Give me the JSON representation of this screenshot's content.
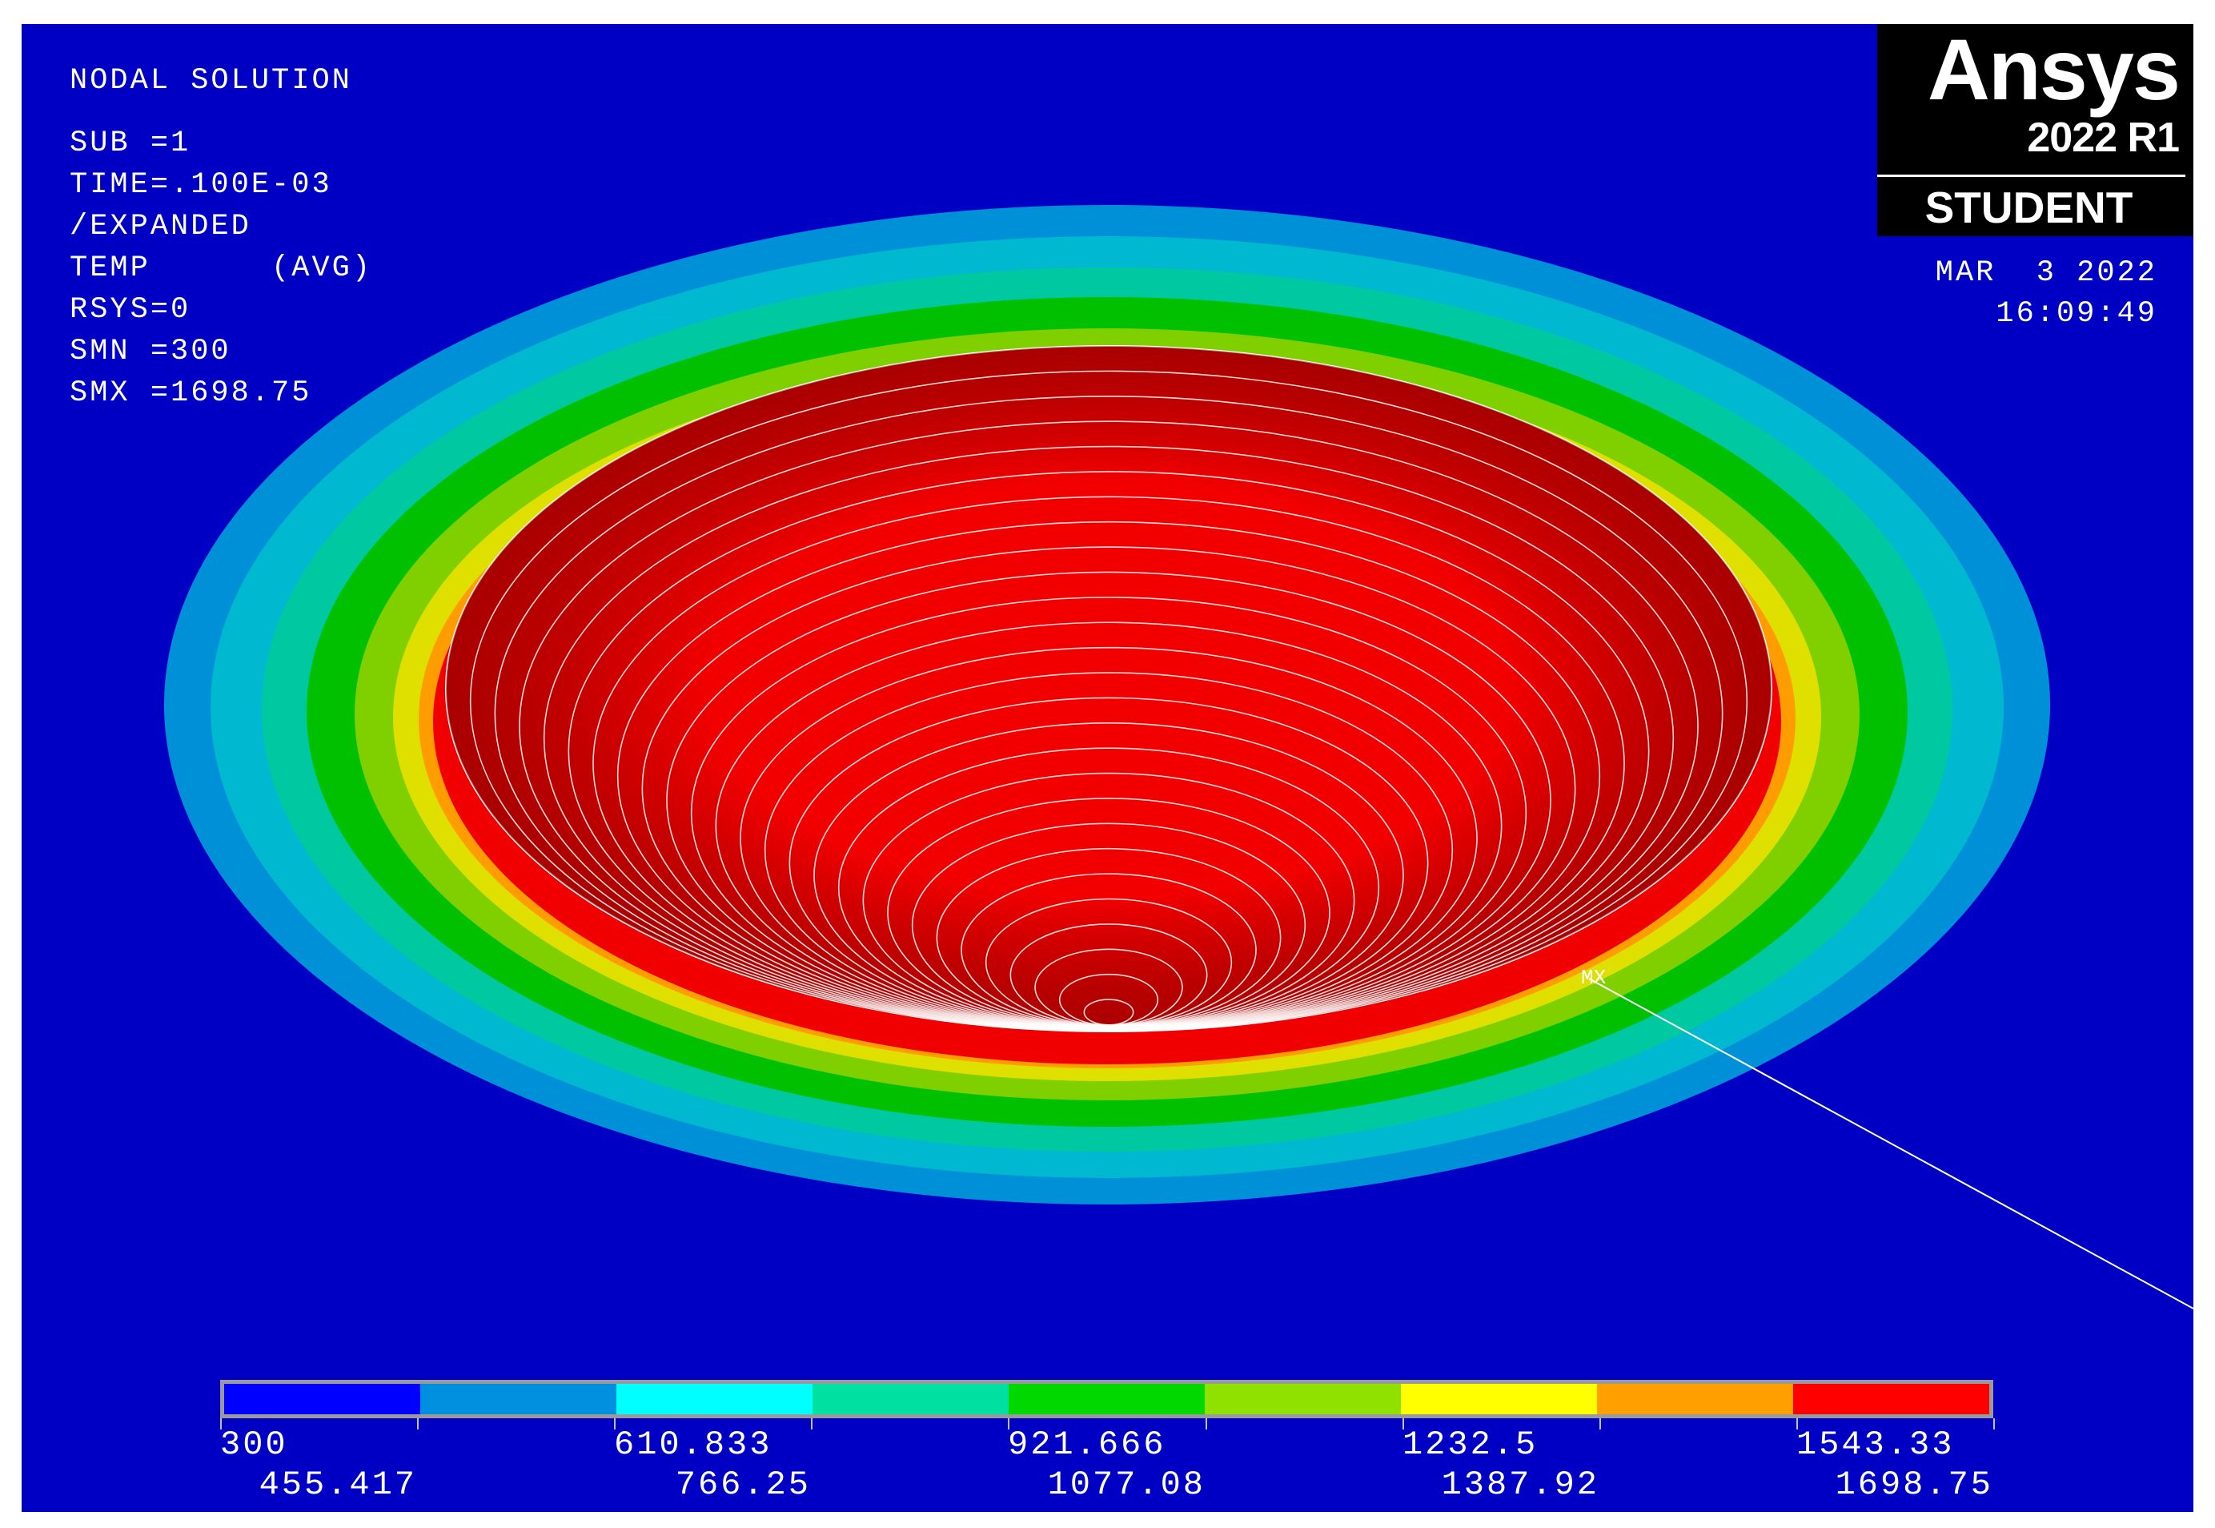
{
  "header": {
    "title": "NODAL SOLUTION",
    "lines": [
      "SUB =1",
      "TIME=.100E-03",
      "/EXPANDED",
      "TEMP      (AVG)",
      "RSYS=0",
      "SMN =300",
      "SMX =1698.75"
    ]
  },
  "logo": {
    "brand": "Ansys",
    "version": "2022 R1",
    "edition": "STUDENT"
  },
  "datetime": {
    "date": "MAR  3 2022",
    "time": "16:09:49"
  },
  "marker": {
    "label": "MX"
  },
  "contour": {
    "colors": [
      "#0000c4",
      "#0090d8",
      "#00b8d0",
      "#00c8a0",
      "#00c000",
      "#80d000",
      "#e0e000",
      "#ff9c00",
      "#f00000"
    ]
  },
  "legend": {
    "colors": [
      "#0000ff",
      "#0090e0",
      "#00ffff",
      "#00e0a0",
      "#00d800",
      "#90e000",
      "#ffff00",
      "#ffa000",
      "#ff0000"
    ],
    "labels_top": [
      "300",
      "610.833",
      "921.666",
      "1232.5",
      "1543.33"
    ],
    "labels_bottom": [
      "455.417",
      "766.25",
      "1077.08",
      "1387.92",
      "1698.75"
    ]
  }
}
